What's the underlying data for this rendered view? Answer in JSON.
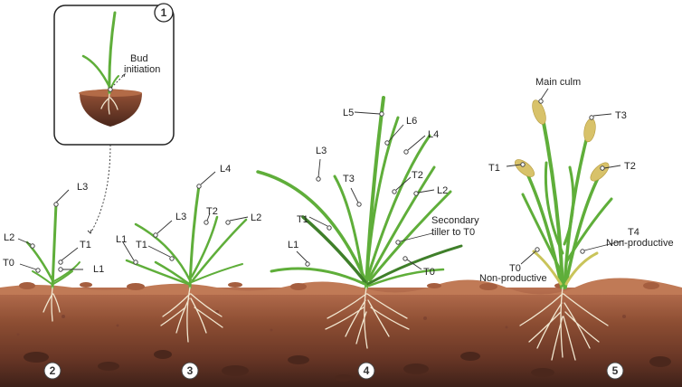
{
  "labels": {
    "bud_initiation_l1": "Bud",
    "bud_initiation_l2": "initiation",
    "s2_l3": "L3",
    "s2_l2": "L2",
    "s2_t1": "T1",
    "s2_t0": "T0",
    "s2_l1": "L1",
    "s3_l4": "L4",
    "s3_l3": "L3",
    "s3_t2": "T2",
    "s3_l2": "L2",
    "s3_l1": "L1",
    "s3_t1": "T1",
    "s4_l5": "L5",
    "s4_l6": "L6",
    "s4_l4": "L4",
    "s4_l3": "L3",
    "s4_t3": "T3",
    "s4_t2": "T2",
    "s4_l2": "L2",
    "s4_t1": "T1",
    "s4_l1": "L1",
    "s4_secondary_l1": "Secondary",
    "s4_secondary_l2": "tiller to T0",
    "s4_t0": "T0",
    "s5_main_culm": "Main culm",
    "s5_t3": "T3",
    "s5_t1": "T1",
    "s5_t2": "T2",
    "s5_t4": "T4",
    "s5_nonproductive_right": "Non-productive",
    "s5_t0": "T0",
    "s5_nonproductive_left": "Non-productive"
  },
  "stages": [
    "1",
    "2",
    "3",
    "4",
    "5"
  ],
  "colors": {
    "leaf": "#5fae3a",
    "leaf_dark": "#3f7f2a",
    "soil_top": "#b36b47",
    "soil_mid": "#8a4a30",
    "soil_deep": "#5b2f20",
    "root": "#f1e6cf",
    "ear": "#d8c26a"
  }
}
